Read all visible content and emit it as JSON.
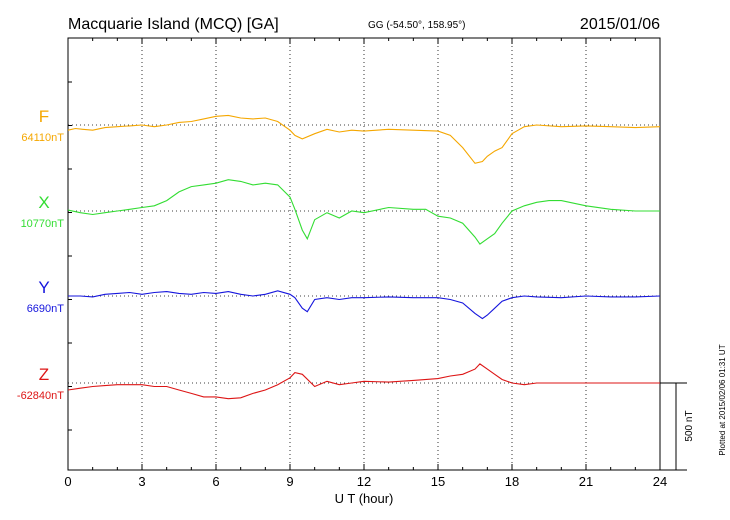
{
  "header": {
    "station": "Macquarie Island (MCQ)  [GA]",
    "coords": "GG (-54.50°, 158.95°)",
    "date": "2015/01/06"
  },
  "plotted_note": "Plotted at 2015/02/06 01:31  UT",
  "chart_data": {
    "type": "line",
    "xlabel": "U T (hour)",
    "xlim": [
      0,
      24
    ],
    "x_ticks": [
      "0",
      "3",
      "6",
      "9",
      "12",
      "15",
      "18",
      "21",
      "24"
    ],
    "scale_bar": {
      "label": "500 nT",
      "value_nT": 500
    },
    "grid": "dotted",
    "series": [
      {
        "name": "F",
        "baseline_label": "64110nT",
        "baseline_nT": 64110,
        "color": "#f5a700",
        "points": [
          [
            0,
            64080
          ],
          [
            0.3,
            64090
          ],
          [
            0.6,
            64085
          ],
          [
            1,
            64080
          ],
          [
            1.5,
            64095
          ],
          [
            2,
            64100
          ],
          [
            2.5,
            64105
          ],
          [
            3,
            64110
          ],
          [
            3.5,
            64100
          ],
          [
            4,
            64110
          ],
          [
            4.5,
            64125
          ],
          [
            5,
            64130
          ],
          [
            5.5,
            64145
          ],
          [
            6,
            64160
          ],
          [
            6.5,
            64165
          ],
          [
            7,
            64150
          ],
          [
            7.5,
            64145
          ],
          [
            8,
            64150
          ],
          [
            8.5,
            64130
          ],
          [
            9,
            64080
          ],
          [
            9.2,
            64050
          ],
          [
            9.5,
            64030
          ],
          [
            10,
            64060
          ],
          [
            10.5,
            64085
          ],
          [
            11,
            64070
          ],
          [
            11.5,
            64080
          ],
          [
            12,
            64075
          ],
          [
            13,
            64085
          ],
          [
            14,
            64080
          ],
          [
            15,
            64075
          ],
          [
            15.5,
            64050
          ],
          [
            16,
            63980
          ],
          [
            16.5,
            63890
          ],
          [
            16.8,
            63900
          ],
          [
            17,
            63930
          ],
          [
            17.3,
            63960
          ],
          [
            17.6,
            63980
          ],
          [
            18,
            64060
          ],
          [
            18.5,
            64100
          ],
          [
            19,
            64110
          ],
          [
            20,
            64100
          ],
          [
            21,
            64105
          ],
          [
            22,
            64100
          ],
          [
            23,
            64095
          ],
          [
            24,
            64100
          ]
        ]
      },
      {
        "name": "X",
        "baseline_label": "10770nT",
        "baseline_nT": 10770,
        "color": "#33dd33",
        "points": [
          [
            0,
            10775
          ],
          [
            0.5,
            10760
          ],
          [
            1,
            10750
          ],
          [
            1.5,
            10760
          ],
          [
            2,
            10770
          ],
          [
            2.5,
            10780
          ],
          [
            3,
            10790
          ],
          [
            3.5,
            10800
          ],
          [
            4,
            10830
          ],
          [
            4.5,
            10880
          ],
          [
            5,
            10910
          ],
          [
            5.5,
            10920
          ],
          [
            6,
            10930
          ],
          [
            6.5,
            10950
          ],
          [
            7,
            10940
          ],
          [
            7.5,
            10920
          ],
          [
            8,
            10930
          ],
          [
            8.5,
            10920
          ],
          [
            9,
            10850
          ],
          [
            9.2,
            10780
          ],
          [
            9.5,
            10660
          ],
          [
            9.7,
            10610
          ],
          [
            10,
            10720
          ],
          [
            10.5,
            10760
          ],
          [
            11,
            10730
          ],
          [
            11.5,
            10770
          ],
          [
            12,
            10760
          ],
          [
            13,
            10790
          ],
          [
            14,
            10780
          ],
          [
            14.5,
            10780
          ],
          [
            15,
            10740
          ],
          [
            15.5,
            10730
          ],
          [
            16,
            10700
          ],
          [
            16.5,
            10620
          ],
          [
            16.7,
            10580
          ],
          [
            17,
            10610
          ],
          [
            17.3,
            10640
          ],
          [
            17.6,
            10700
          ],
          [
            18,
            10770
          ],
          [
            18.5,
            10800
          ],
          [
            19,
            10820
          ],
          [
            19.5,
            10830
          ],
          [
            20,
            10830
          ],
          [
            21,
            10800
          ],
          [
            22,
            10780
          ],
          [
            23,
            10770
          ],
          [
            24,
            10770
          ]
        ]
      },
      {
        "name": "Y",
        "baseline_label": "6690nT",
        "baseline_nT": 6690,
        "color": "#1515dd",
        "points": [
          [
            0,
            6690
          ],
          [
            0.5,
            6690
          ],
          [
            1,
            6685
          ],
          [
            1.5,
            6700
          ],
          [
            2,
            6705
          ],
          [
            2.5,
            6710
          ],
          [
            3,
            6700
          ],
          [
            3.5,
            6710
          ],
          [
            4,
            6715
          ],
          [
            4.5,
            6705
          ],
          [
            5,
            6700
          ],
          [
            5.5,
            6710
          ],
          [
            6,
            6705
          ],
          [
            6.5,
            6715
          ],
          [
            7,
            6700
          ],
          [
            7.5,
            6690
          ],
          [
            8,
            6700
          ],
          [
            8.5,
            6720
          ],
          [
            9,
            6700
          ],
          [
            9.2,
            6680
          ],
          [
            9.5,
            6620
          ],
          [
            9.7,
            6600
          ],
          [
            10,
            6670
          ],
          [
            10.5,
            6680
          ],
          [
            11,
            6670
          ],
          [
            11.5,
            6680
          ],
          [
            12,
            6680
          ],
          [
            13,
            6685
          ],
          [
            14,
            6680
          ],
          [
            15,
            6680
          ],
          [
            15.5,
            6670
          ],
          [
            16,
            6650
          ],
          [
            16.5,
            6590
          ],
          [
            16.8,
            6560
          ],
          [
            17,
            6580
          ],
          [
            17.3,
            6620
          ],
          [
            17.6,
            6660
          ],
          [
            18,
            6680
          ],
          [
            18.5,
            6690
          ],
          [
            19,
            6685
          ],
          [
            20,
            6680
          ],
          [
            21,
            6690
          ],
          [
            22,
            6685
          ],
          [
            23,
            6685
          ],
          [
            24,
            6690
          ]
        ]
      },
      {
        "name": "Z",
        "baseline_label": "-62840nT",
        "baseline_nT": -62840,
        "color": "#dd1515",
        "points": [
          [
            0,
            -62880
          ],
          [
            0.5,
            -62870
          ],
          [
            1,
            -62860
          ],
          [
            1.5,
            -62855
          ],
          [
            2,
            -62850
          ],
          [
            2.5,
            -62850
          ],
          [
            3,
            -62850
          ],
          [
            3.5,
            -62860
          ],
          [
            4,
            -62860
          ],
          [
            4.5,
            -62880
          ],
          [
            5,
            -62900
          ],
          [
            5.5,
            -62920
          ],
          [
            6,
            -62920
          ],
          [
            6.5,
            -62930
          ],
          [
            7,
            -62925
          ],
          [
            7.5,
            -62900
          ],
          [
            8,
            -62880
          ],
          [
            8.5,
            -62850
          ],
          [
            9,
            -62810
          ],
          [
            9.2,
            -62780
          ],
          [
            9.5,
            -62790
          ],
          [
            10,
            -62860
          ],
          [
            10.5,
            -62830
          ],
          [
            11,
            -62850
          ],
          [
            11.5,
            -62840
          ],
          [
            12,
            -62830
          ],
          [
            13,
            -62835
          ],
          [
            14,
            -62825
          ],
          [
            15,
            -62815
          ],
          [
            15.5,
            -62800
          ],
          [
            16,
            -62790
          ],
          [
            16.5,
            -62760
          ],
          [
            16.7,
            -62730
          ],
          [
            17,
            -62760
          ],
          [
            17.3,
            -62790
          ],
          [
            17.6,
            -62820
          ],
          [
            18,
            -62840
          ],
          [
            18.5,
            -62850
          ],
          [
            19,
            -62840
          ],
          [
            20,
            -62840
          ],
          [
            21,
            -62840
          ],
          [
            22,
            -62840
          ],
          [
            23,
            -62840
          ],
          [
            24,
            -62840
          ]
        ]
      }
    ]
  }
}
